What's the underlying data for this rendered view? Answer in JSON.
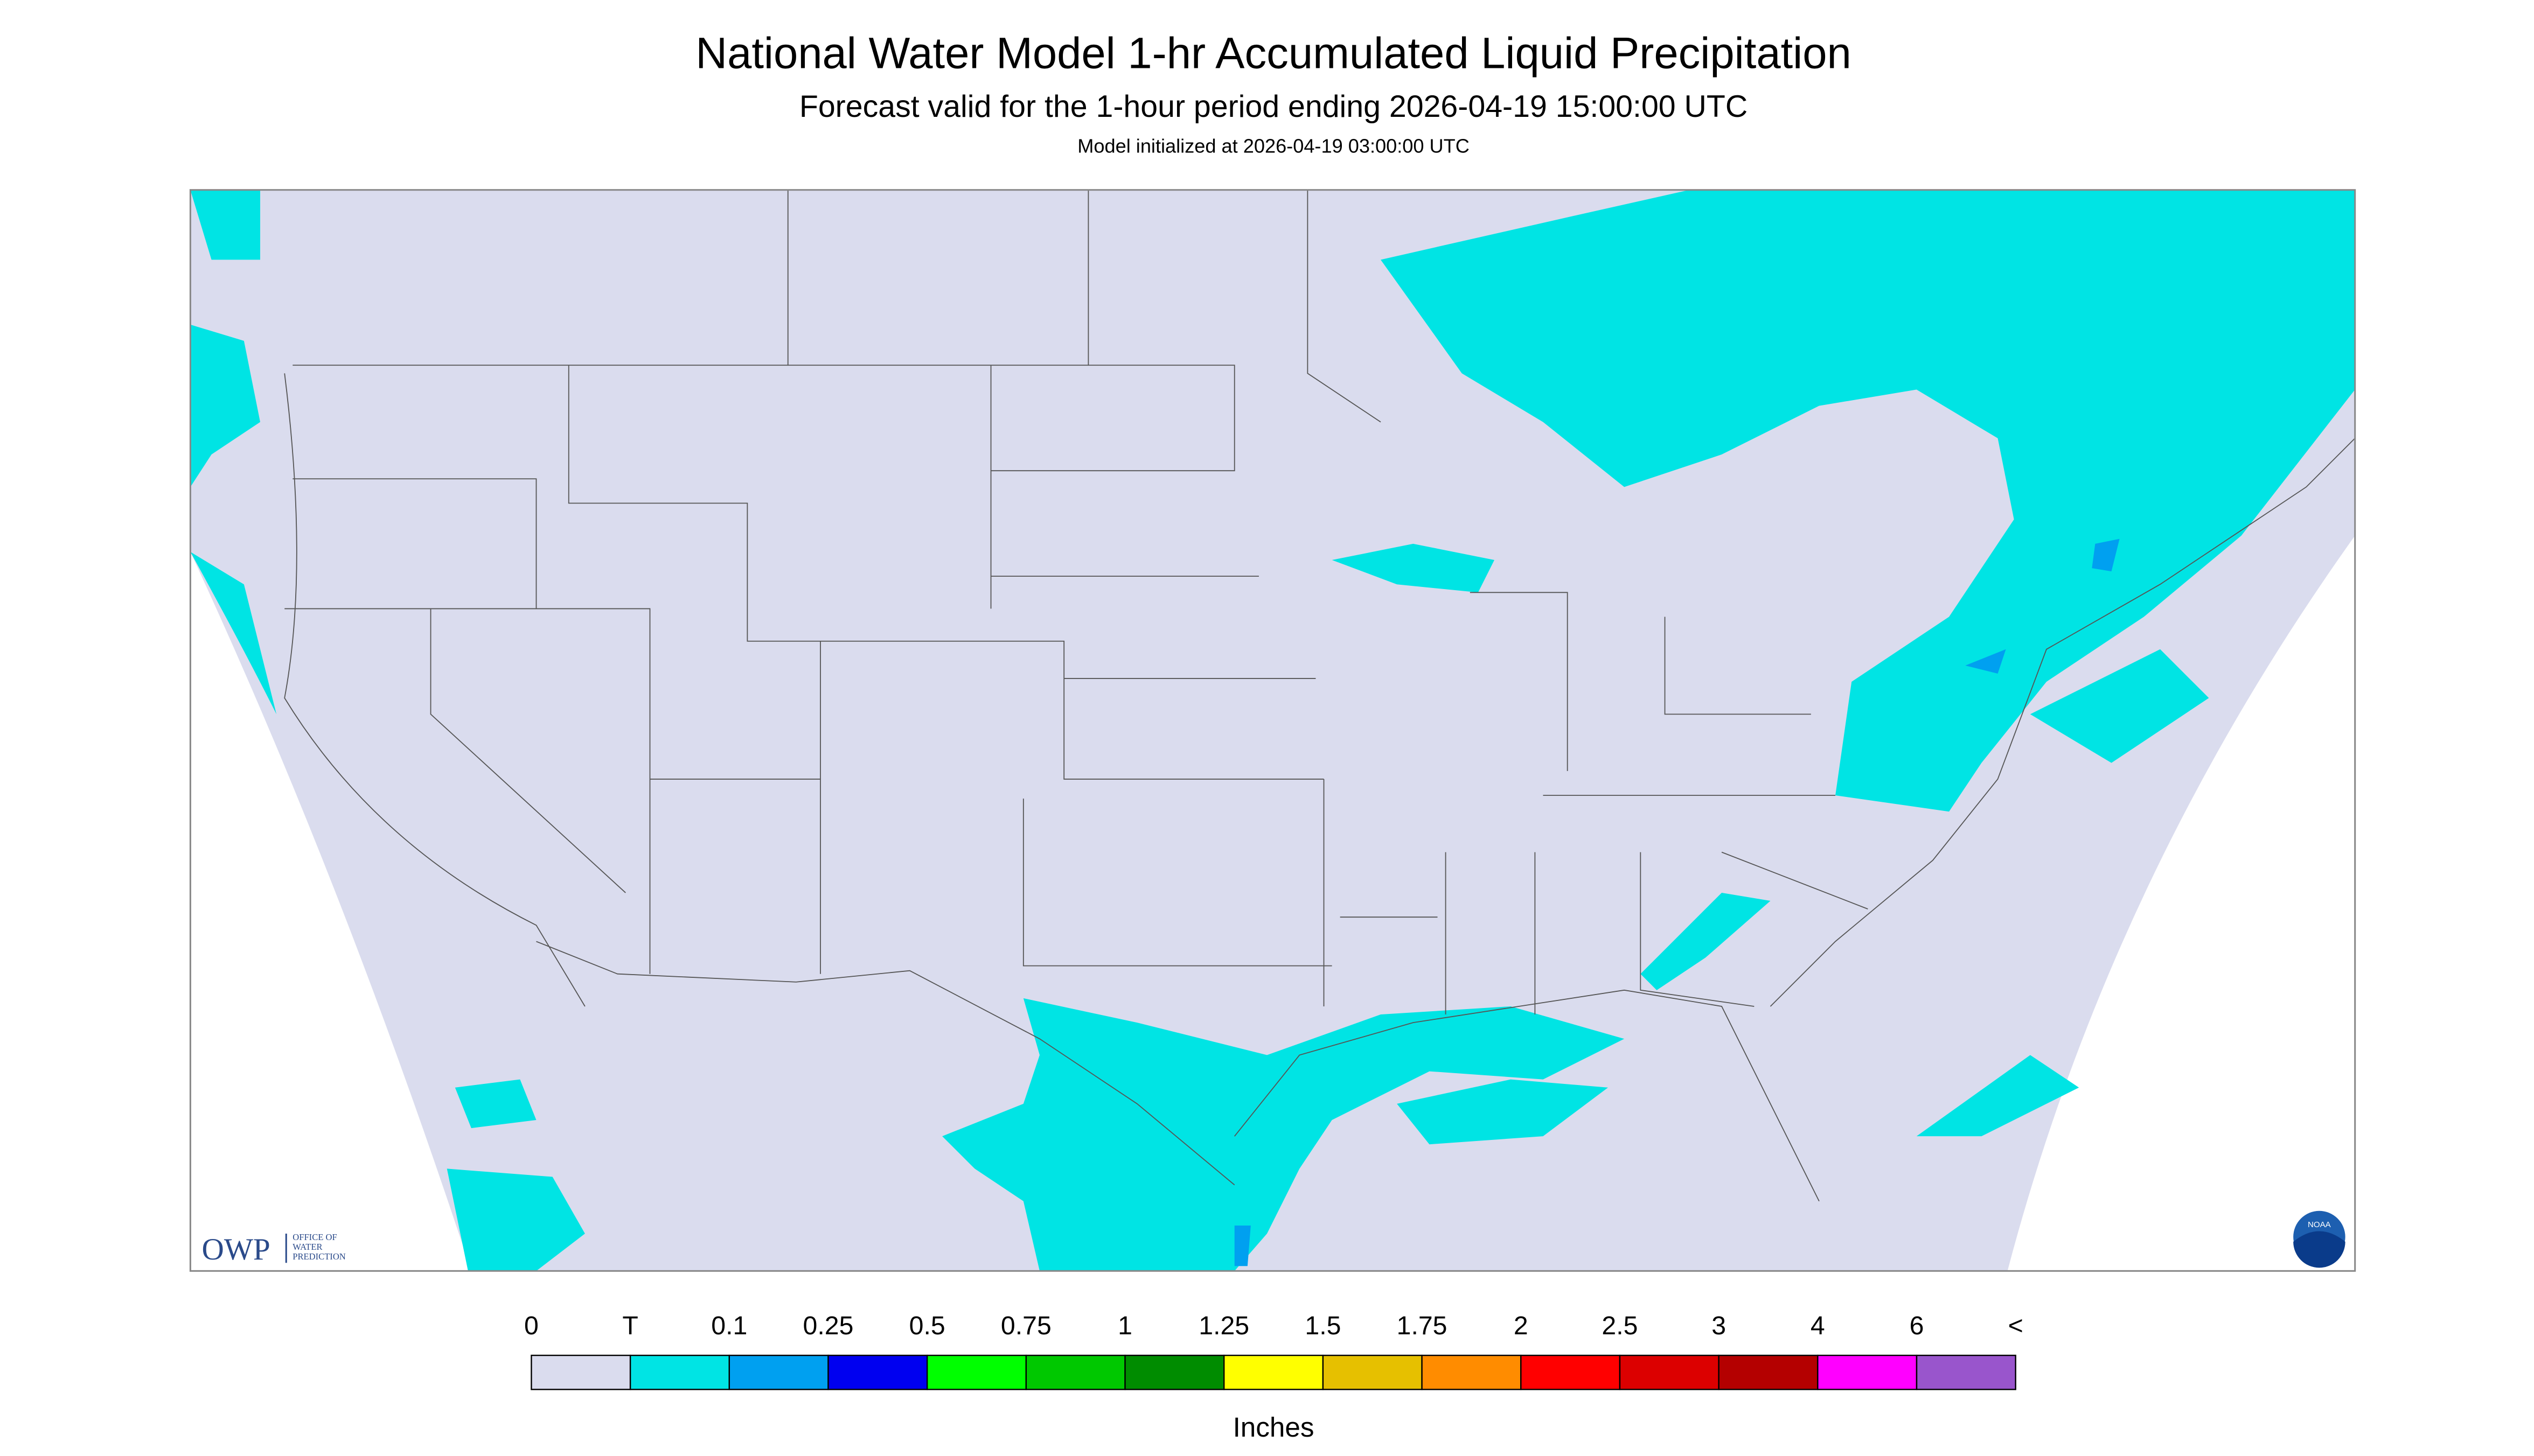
{
  "header": {
    "title": "National Water Model 1-hr Accumulated Liquid Precipitation",
    "subtitle": "Forecast valid for the 1-hour period ending 2026-04-19 15:00:00 UTC",
    "init": "Model initialized at 2026-04-19 03:00:00 UTC"
  },
  "legend": {
    "labels": [
      "0",
      "T",
      "0.1",
      "0.25",
      "0.5",
      "0.75",
      "1",
      "1.25",
      "1.5",
      "1.75",
      "2",
      "2.5",
      "3",
      "4",
      "6",
      "<"
    ],
    "colors": [
      "#dadcee",
      "#00e4e4",
      "#00a0f0",
      "#0000f0",
      "#00ff00",
      "#00c800",
      "#008c00",
      "#ffff00",
      "#e6c000",
      "#ff8c00",
      "#ff0000",
      "#dc0000",
      "#b40000",
      "#ff00ff",
      "#9955cc"
    ],
    "units": "Inches"
  },
  "logos": {
    "owp": "OWP",
    "owp_lines": [
      "OFFICE OF",
      "WATER",
      "PREDICTION"
    ],
    "noaa": "NOAA"
  }
}
